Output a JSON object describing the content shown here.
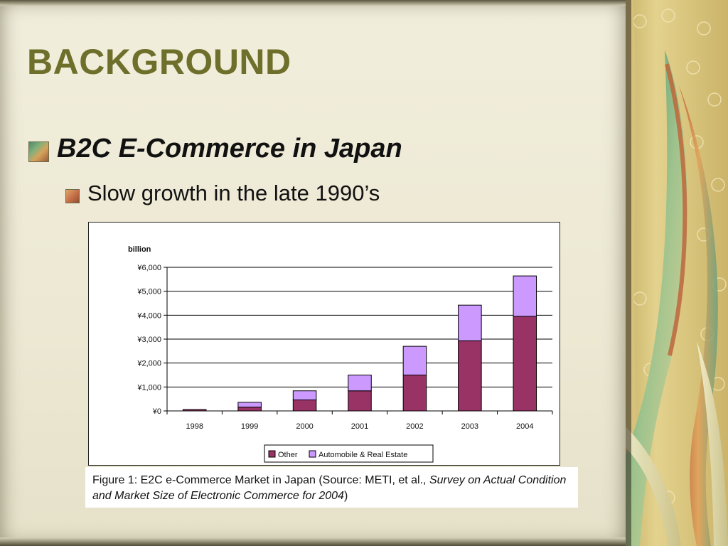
{
  "slide": {
    "title": "BACKGROUND",
    "bullet_1": "B2C E-Commerce in Japan",
    "bullet_2": "Slow growth in the late 1990’s",
    "caption": {
      "prefix": "Figure 1: E2C e-Commerce Market in Japan (Source: METI, et al., ",
      "italic": "Survey on Actual Condition and Market Size of Electronic Commerce for 2004",
      "suffix": ")"
    },
    "bullet_icons": [
      "square-bullet-icon",
      "square-bullet-icon"
    ],
    "colors": {
      "title": "#6d6f2b",
      "series_other": "#993366",
      "series_auto": "#cc99ff"
    }
  },
  "chart_data": {
    "type": "bar",
    "stacked": true,
    "title": "",
    "ylabel": "billion",
    "xlabel": "",
    "categories": [
      "1998",
      "1999",
      "2000",
      "2001",
      "2002",
      "2003",
      "2004"
    ],
    "series": [
      {
        "name": "Other",
        "color": "#993366",
        "values": [
          60,
          160,
          460,
          840,
          1500,
          2930,
          3950
        ]
      },
      {
        "name": "Automobile & Real Estate",
        "color": "#cc99ff",
        "values": [
          0,
          200,
          380,
          660,
          1200,
          1490,
          1690
        ]
      }
    ],
    "ylim": [
      0,
      6000
    ],
    "yticks": [
      0,
      1000,
      2000,
      3000,
      4000,
      5000,
      6000
    ],
    "ytick_labels": [
      "¥0",
      "¥1,000",
      "¥2,000",
      "¥3,000",
      "¥4,000",
      "¥5,000",
      "¥6,000"
    ],
    "grid": true,
    "legend": "bottom"
  }
}
